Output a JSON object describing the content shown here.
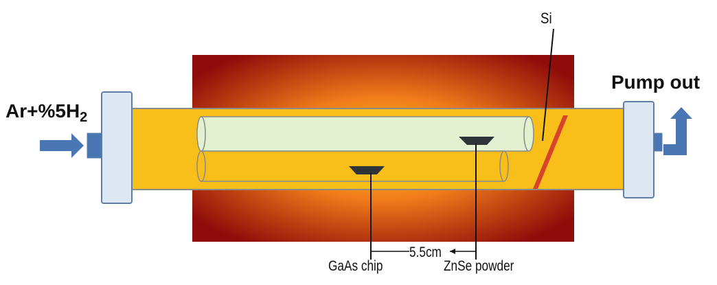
{
  "labels": {
    "inlet_gas": "Ar+%5H",
    "inlet_gas_subscript": "2",
    "outlet": "Pump out",
    "substrate": "Si",
    "source_1": "GaAs chip",
    "source_2": "ZnSe powder",
    "distance": "5.5cm"
  },
  "colors": {
    "tube_fill": "#f8be1a",
    "tube_stroke": "#8a8a8a",
    "inner_tube_fill": "#e2f1cf",
    "flange_fill": "#dde7f4",
    "flange_stroke": "#5e7fa8",
    "arrow_fill": "#4a76b3",
    "furnace_center": "#ffd21a",
    "furnace_mid": "#f07a1a",
    "furnace_edge": "#8f0c0a",
    "si_wafer": "#d8442a",
    "boat_fill": "#2f3438"
  },
  "icons": {
    "inlet_arrow": "arrow-right-icon",
    "outlet_arrow": "arrow-up-right-icon"
  }
}
